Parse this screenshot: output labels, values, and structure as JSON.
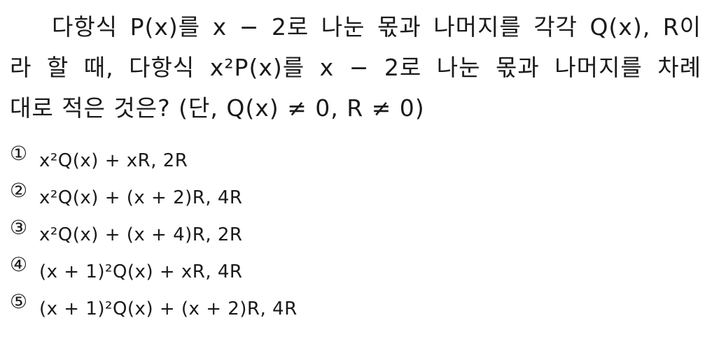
{
  "question": {
    "line1": "다항식 P(x)를 x − 2로 나눈 몫과 나머지를 각각 Q(x), R이",
    "line2": "라 할 때, 다항식 x²P(x)를 x − 2로 나눈 몫과 나머지를 차례",
    "line3": "대로 적은 것은? (단, Q(x) ≠ 0, R ≠ 0)"
  },
  "choices": [
    {
      "marker": "①",
      "text": "x²Q(x) + xR, 2R"
    },
    {
      "marker": "②",
      "text": "x²Q(x) + (x + 2)R, 4R"
    },
    {
      "marker": "③",
      "text": "x²Q(x) + (x + 4)R, 2R"
    },
    {
      "marker": "④",
      "text": "(x + 1)²Q(x) + xR, 4R"
    },
    {
      "marker": "⑤",
      "text": "(x + 1)²Q(x) + (x + 2)R, 4R"
    }
  ]
}
